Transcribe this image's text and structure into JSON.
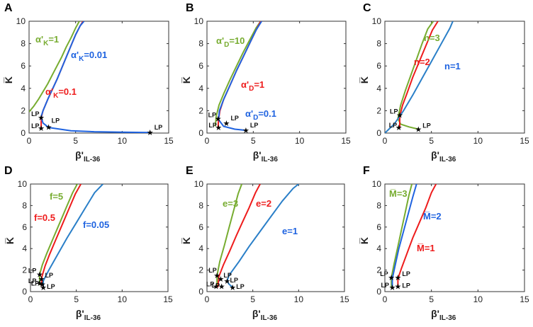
{
  "figure": {
    "panels": [
      "A",
      "B",
      "C",
      "D",
      "E",
      "F"
    ]
  },
  "axes": {
    "xlabel_main": "β'",
    "xlabel_sub": "IL-36",
    "ylabel": "K̅",
    "xticks": [
      "0",
      "5",
      "10",
      "15"
    ],
    "yticks": [
      "0",
      "2",
      "4",
      "6",
      "8",
      "10"
    ],
    "xlim": [
      0,
      15
    ],
    "ylim": [
      0,
      10
    ]
  },
  "lp_label": "LP",
  "colors": {
    "green": "#77ac30",
    "red": "#ee1c1c",
    "blue": "#1f63e0",
    "curve_blue": "#2a7fc8"
  },
  "chart_data": [
    {
      "panel": "A",
      "type": "line",
      "xlabel": "β'IL-36",
      "ylabel": "K̅",
      "xlim": [
        0,
        15
      ],
      "ylim": [
        0,
        10
      ],
      "series": [
        {
          "name": "α'K=1",
          "color": "green",
          "x": [
            0.0,
            0.5,
            1.0,
            1.5,
            2.0,
            2.5,
            3.0,
            3.5,
            4.0,
            4.5,
            5.0,
            5.4
          ],
          "y": [
            1.9,
            2.4,
            3.0,
            3.7,
            4.4,
            5.2,
            6.0,
            6.8,
            7.7,
            8.5,
            9.4,
            10.0
          ]
        },
        {
          "name": "α'K=0.1",
          "color": "red",
          "x": [
            1.3,
            1.3,
            1.35,
            1.5,
            2.0,
            2.5,
            3.0,
            3.5,
            4.0,
            4.5,
            5.0,
            5.5,
            5.8
          ],
          "y": [
            0.4,
            1.0,
            1.5,
            2.0,
            3.0,
            3.9,
            4.8,
            5.8,
            6.8,
            7.8,
            8.8,
            9.6,
            10.0
          ]
        },
        {
          "name": "α'K=0.01",
          "color": "blue",
          "x": [
            13.0,
            10.0,
            7.0,
            4.5,
            2.1,
            1.5,
            1.3,
            1.35,
            1.5,
            2.0,
            2.5,
            3.0,
            3.5,
            4.0,
            4.5,
            5.0,
            5.5,
            5.9
          ],
          "y": [
            0.05,
            0.08,
            0.12,
            0.2,
            0.5,
            0.9,
            1.4,
            1.6,
            2.0,
            3.0,
            3.9,
            4.8,
            5.8,
            6.8,
            7.8,
            8.8,
            9.6,
            10.0
          ]
        }
      ],
      "limit_points": [
        [
          1.3,
          1.4
        ],
        [
          1.3,
          0.45
        ],
        [
          2.1,
          0.55
        ],
        [
          13.0,
          0.05
        ]
      ],
      "labels": [
        {
          "text": "α'",
          "sub": "K",
          "tail": "=1",
          "color": "green"
        },
        {
          "text": "α'",
          "sub": "K",
          "tail": "=0.01",
          "color": "blue"
        },
        {
          "text": "α'",
          "sub": "K",
          "tail": "=0.1",
          "color": "red"
        }
      ]
    },
    {
      "panel": "B",
      "type": "line",
      "xlabel": "β'IL-36",
      "ylabel": "K̅",
      "xlim": [
        0,
        15
      ],
      "ylim": [
        0,
        10
      ],
      "series": [
        {
          "name": "α'D=10",
          "color": "green",
          "x": [
            0.9,
            1.0,
            1.3,
            1.8,
            2.5,
            3.2,
            3.9,
            4.6,
            5.3,
            5.8
          ],
          "y": [
            0.6,
            1.5,
            2.5,
            3.5,
            4.8,
            6.0,
            7.2,
            8.3,
            9.4,
            10.0
          ]
        },
        {
          "name": "α'D=1",
          "color": "red",
          "x": [
            1.2,
            1.25,
            1.4,
            1.8,
            2.5,
            3.2,
            3.9,
            4.6,
            5.3,
            5.8
          ],
          "y": [
            0.5,
            1.2,
            2.0,
            3.0,
            4.3,
            5.6,
            6.8,
            8.0,
            9.2,
            10.0
          ]
        },
        {
          "name": "α'D=0.1",
          "color": "blue",
          "x": [
            4.2,
            3.0,
            1.8,
            1.25,
            1.35,
            1.8,
            2.5,
            3.2,
            3.9,
            4.6,
            5.3,
            5.9
          ],
          "y": [
            0.25,
            0.35,
            0.6,
            1.2,
            2.0,
            3.0,
            4.3,
            5.6,
            6.8,
            8.0,
            9.2,
            10.0
          ]
        }
      ],
      "limit_points": [
        [
          1.2,
          1.3
        ],
        [
          1.25,
          0.5
        ],
        [
          2.1,
          0.9
        ],
        [
          4.2,
          0.25
        ]
      ],
      "labels": [
        {
          "text": "α'",
          "sub": "D",
          "tail": "=10",
          "color": "green"
        },
        {
          "text": "α'",
          "sub": "D",
          "tail": "=1",
          "color": "red"
        },
        {
          "text": "α'",
          "sub": "D",
          "tail": "=0.1",
          "color": "blue"
        }
      ]
    },
    {
      "panel": "C",
      "type": "line",
      "xlabel": "β'IL-36",
      "ylabel": "K̅",
      "xlim": [
        0,
        15
      ],
      "ylim": [
        0,
        10
      ],
      "series": [
        {
          "name": "n=3",
          "color": "green",
          "x": [
            3.6,
            2.6,
            1.7,
            1.4,
            1.7,
            2.2,
            2.8,
            3.4,
            4.0,
            4.6,
            5.2
          ],
          "y": [
            0.35,
            0.55,
            0.8,
            1.3,
            2.5,
            3.8,
            5.2,
            6.6,
            8.0,
            9.3,
            10.0
          ]
        },
        {
          "name": "n=2",
          "color": "red",
          "x": [
            1.6,
            1.6,
            1.9,
            2.4,
            3.0,
            3.7,
            4.4,
            5.1,
            5.7
          ],
          "y": [
            0.5,
            1.5,
            2.5,
            3.6,
            5.0,
            6.4,
            7.8,
            9.2,
            10.0
          ]
        },
        {
          "name": "n=1",
          "color": "curve_blue",
          "x": [
            0.0,
            1.0,
            2.0,
            3.0,
            4.0,
            5.0,
            6.0,
            7.0,
            7.3
          ],
          "y": [
            0.0,
            0.8,
            2.0,
            3.4,
            4.9,
            6.4,
            7.9,
            9.4,
            10.0
          ]
        }
      ],
      "limit_points": [
        [
          1.6,
          1.6
        ],
        [
          1.5,
          0.5
        ],
        [
          3.6,
          0.35
        ]
      ],
      "labels": [
        {
          "text": "n=3",
          "sub": "",
          "tail": "",
          "color": "green"
        },
        {
          "text": "n=2",
          "sub": "",
          "tail": "",
          "color": "red"
        },
        {
          "text": "n=1",
          "sub": "",
          "tail": "",
          "color": "blue"
        }
      ]
    },
    {
      "panel": "D",
      "type": "line",
      "xlabel": "β'IL-36",
      "ylabel": "K̅",
      "xlim": [
        0,
        15
      ],
      "ylim": [
        0,
        10
      ],
      "series": [
        {
          "name": "f=5",
          "color": "green",
          "x": [
            1.0,
            1.0,
            1.3,
            1.8,
            2.5,
            3.2,
            3.9,
            4.6,
            5.1
          ],
          "y": [
            0.6,
            1.6,
            2.5,
            3.6,
            5.0,
            6.4,
            7.8,
            9.2,
            10.0
          ]
        },
        {
          "name": "f=0.5",
          "color": "red",
          "x": [
            1.2,
            1.25,
            1.6,
            2.1,
            2.8,
            3.5,
            4.2,
            4.9,
            5.5
          ],
          "y": [
            0.5,
            1.4,
            2.4,
            3.5,
            4.9,
            6.3,
            7.7,
            9.1,
            10.0
          ]
        },
        {
          "name": "f=0.05",
          "color": "curve_blue",
          "x": [
            1.4,
            1.4,
            2.0,
            3.0,
            4.0,
            5.0,
            6.0,
            7.0,
            7.9
          ],
          "y": [
            0.4,
            1.0,
            2.0,
            3.5,
            5.0,
            6.4,
            7.8,
            9.2,
            10.0
          ]
        }
      ],
      "limit_points": [
        [
          1.0,
          1.6
        ],
        [
          1.0,
          0.8
        ],
        [
          1.2,
          1.2
        ],
        [
          1.3,
          0.7
        ],
        [
          1.4,
          0.4
        ]
      ],
      "labels": [
        {
          "text": "f=5",
          "sub": "",
          "tail": "",
          "color": "green"
        },
        {
          "text": "f=0.5",
          "sub": "",
          "tail": "",
          "color": "red"
        },
        {
          "text": "f=0.05",
          "sub": "",
          "tail": "",
          "color": "blue"
        }
      ]
    },
    {
      "panel": "E",
      "type": "line",
      "xlabel": "β'IL-36",
      "ylabel": "K̅",
      "xlim": [
        0,
        15
      ],
      "ylim": [
        0,
        10
      ],
      "series": [
        {
          "name": "e=3",
          "color": "green",
          "x": [
            1.1,
            1.1,
            1.4,
            1.9,
            2.4,
            2.9,
            3.4,
            3.8
          ],
          "y": [
            0.5,
            1.5,
            2.8,
            4.3,
            5.9,
            7.5,
            9.1,
            10.0
          ]
        },
        {
          "name": "e=2",
          "color": "red",
          "x": [
            1.2,
            1.3,
            1.8,
            2.5,
            3.2,
            3.9,
            4.6,
            5.3,
            5.8
          ],
          "y": [
            0.4,
            1.4,
            2.5,
            3.8,
            5.2,
            6.5,
            7.8,
            9.2,
            10.0
          ]
        },
        {
          "name": "e=1",
          "color": "curve_blue",
          "x": [
            2.8,
            2.4,
            2.2,
            2.4,
            3.5,
            4.6,
            5.8,
            7.0,
            8.2,
            9.4,
            10.0
          ],
          "y": [
            0.4,
            0.7,
            1.0,
            1.5,
            2.8,
            4.2,
            5.6,
            7.0,
            8.4,
            9.6,
            10.0
          ]
        }
      ],
      "limit_points": [
        [
          1.1,
          1.5
        ],
        [
          1.0,
          0.5
        ],
        [
          1.5,
          1.2
        ],
        [
          1.6,
          0.5
        ],
        [
          2.2,
          1.0
        ],
        [
          2.8,
          0.4
        ]
      ],
      "labels": [
        {
          "text": "e=3",
          "sub": "",
          "tail": "",
          "color": "green"
        },
        {
          "text": "e=2",
          "sub": "",
          "tail": "",
          "color": "red"
        },
        {
          "text": "e=1",
          "sub": "",
          "tail": "",
          "color": "blue"
        }
      ]
    },
    {
      "panel": "F",
      "type": "line",
      "xlabel": "β'IL-36",
      "ylabel": "K̅",
      "xlim": [
        0,
        15
      ],
      "ylim": [
        0,
        10
      ],
      "series": [
        {
          "name": "M̅=3",
          "color": "green",
          "x": [
            0.7,
            0.7,
            1.0,
            1.4,
            1.8,
            2.2,
            2.6,
            2.9
          ],
          "y": [
            0.4,
            1.3,
            2.6,
            4.2,
            5.8,
            7.4,
            9.0,
            10.0
          ]
        },
        {
          "name": "M̅=2",
          "color": "blue",
          "x": [
            0.8,
            0.8,
            1.1,
            1.5,
            2.0,
            2.5,
            3.0,
            3.4
          ],
          "y": [
            0.4,
            1.2,
            2.4,
            4.0,
            5.6,
            7.2,
            8.8,
            10.0
          ]
        },
        {
          "name": "M̅=1",
          "color": "red",
          "x": [
            1.4,
            1.4,
            1.8,
            2.4,
            3.0,
            3.7,
            4.4,
            5.0,
            5.5
          ],
          "y": [
            0.4,
            1.2,
            2.2,
            3.6,
            5.0,
            6.4,
            7.8,
            9.2,
            10.0
          ]
        }
      ],
      "limit_points": [
        [
          0.7,
          1.3
        ],
        [
          0.8,
          0.4
        ],
        [
          1.4,
          1.3
        ],
        [
          1.4,
          0.5
        ]
      ],
      "labels": [
        {
          "text": "M̅=3",
          "sub": "",
          "tail": "",
          "color": "green"
        },
        {
          "text": "M̅=2",
          "sub": "",
          "tail": "",
          "color": "blue"
        },
        {
          "text": "M̅=1",
          "sub": "",
          "tail": "",
          "color": "red"
        }
      ]
    }
  ]
}
